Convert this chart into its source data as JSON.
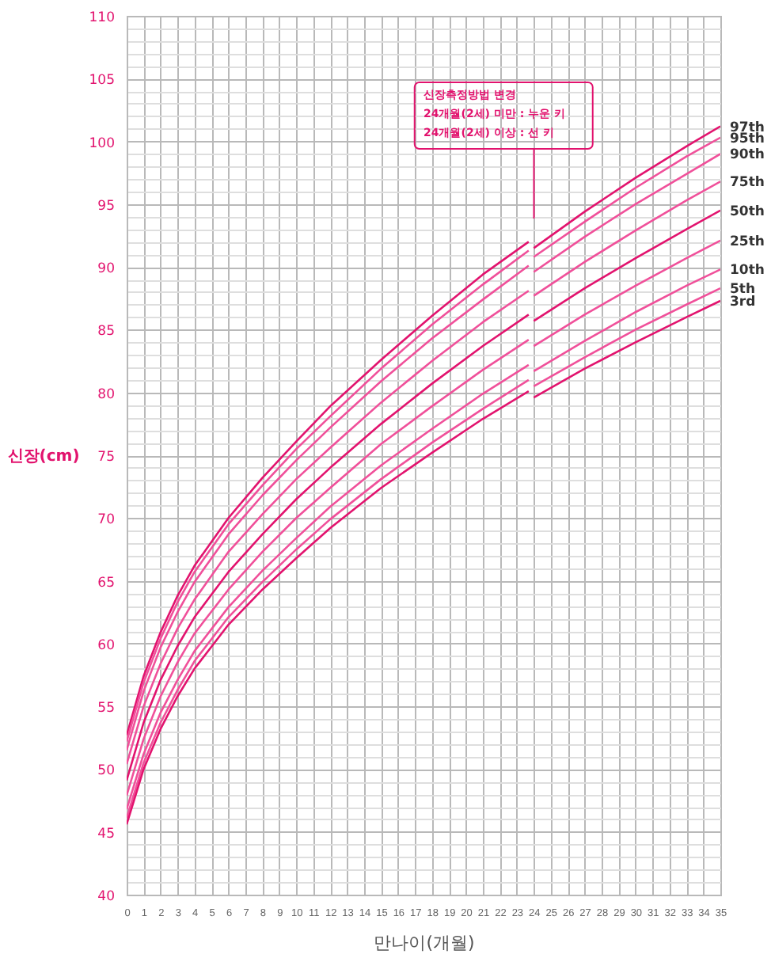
{
  "chart_data": {
    "type": "line",
    "xlabel": "만나이(개월)",
    "ylabel": "신장(cm)",
    "xlim": [
      0,
      35
    ],
    "ylim": [
      40,
      110
    ],
    "xticks": [
      0,
      1,
      2,
      3,
      4,
      5,
      6,
      7,
      8,
      9,
      10,
      11,
      12,
      13,
      14,
      15,
      16,
      17,
      18,
      19,
      20,
      21,
      22,
      23,
      24,
      25,
      26,
      27,
      28,
      29,
      30,
      31,
      32,
      33,
      34,
      35
    ],
    "yticks": [
      40,
      {
        "value": 41,
        "label": null
      },
      {
        "value": 42,
        "label": null
      },
      {
        "value": 43,
        "label": null
      },
      {
        "value": 44,
        "label": null
      },
      45,
      {
        "value": 46,
        "label": null
      },
      {
        "value": 47,
        "label": null
      },
      {
        "value": 48,
        "label": null
      },
      {
        "value": 49,
        "label": null
      },
      50,
      {
        "value": 51,
        "label": null
      },
      {
        "value": 52,
        "label": null
      },
      {
        "value": 53,
        "label": null
      },
      {
        "value": 54,
        "label": null
      },
      55,
      {
        "value": 56,
        "label": null
      },
      {
        "value": 57,
        "label": null
      },
      {
        "value": 58,
        "label": null
      },
      {
        "value": 59,
        "label": null
      },
      60,
      {
        "value": 61,
        "label": null
      },
      {
        "value": 62,
        "label": null
      },
      {
        "value": 63,
        "label": null
      },
      {
        "value": 64,
        "label": null
      },
      65,
      {
        "value": 66,
        "label": null
      },
      {
        "value": 67,
        "label": null
      },
      {
        "value": 68,
        "label": null
      },
      {
        "value": 69,
        "label": null
      },
      70,
      {
        "value": 71,
        "label": null
      },
      {
        "value": 72,
        "label": null
      },
      {
        "value": 73,
        "label": null
      },
      {
        "value": 74,
        "label": null
      },
      75,
      {
        "value": 76,
        "label": null
      },
      {
        "value": 77,
        "label": null
      },
      {
        "value": 78,
        "label": null
      },
      {
        "value": 79,
        "label": null
      },
      80,
      {
        "value": 81,
        "label": null
      },
      {
        "value": 82,
        "label": null
      },
      {
        "value": 83,
        "label": null
      },
      {
        "value": 84,
        "label": null
      },
      85,
      {
        "value": 86,
        "label": null
      },
      {
        "value": 87,
        "label": null
      },
      {
        "value": 88,
        "label": null
      },
      {
        "value": 89,
        "label": null
      },
      90,
      {
        "value": 91,
        "label": null
      },
      {
        "value": 92,
        "label": null
      },
      {
        "value": 93,
        "label": null
      },
      {
        "value": 94,
        "label": null
      },
      95,
      {
        "value": 96,
        "label": null
      },
      {
        "value": 97,
        "label": null
      },
      {
        "value": 98,
        "label": null
      },
      {
        "value": 99,
        "label": null
      },
      100,
      {
        "value": 101,
        "label": null
      },
      {
        "value": 102,
        "label": null
      },
      {
        "value": 103,
        "label": null
      },
      {
        "value": 104,
        "label": null
      },
      105,
      {
        "value": 106,
        "label": null
      },
      {
        "value": 107,
        "label": null
      },
      {
        "value": 108,
        "label": null
      },
      {
        "value": 109,
        "label": null
      },
      110
    ],
    "grid": true,
    "legend": false,
    "x": [
      0,
      1,
      2,
      3,
      4,
      6,
      8,
      10,
      12,
      15,
      18,
      21,
      23.7,
      23.85,
      24,
      27,
      30,
      33,
      35
    ],
    "series": [
      {
        "name": "97th",
        "color": "#e2136e",
        "values": [
          52.7,
          57.4,
          60.9,
          63.8,
          66.2,
          70.0,
          73.2,
          76.1,
          78.9,
          82.6,
          86.1,
          89.4,
          92.0,
          null,
          91.5,
          94.4,
          97.1,
          99.6,
          101.2
        ]
      },
      {
        "name": "95th",
        "color": "#f0509a",
        "values": [
          52.2,
          56.9,
          60.4,
          63.3,
          65.7,
          69.5,
          72.6,
          75.5,
          78.1,
          81.9,
          85.4,
          88.6,
          91.3,
          null,
          90.8,
          93.6,
          96.3,
          98.8,
          100.3
        ]
      },
      {
        "name": "90th",
        "color": "#f0509a",
        "values": [
          51.5,
          56.2,
          59.7,
          62.5,
          64.9,
          68.7,
          71.8,
          74.6,
          77.2,
          80.9,
          84.3,
          87.4,
          90.1,
          null,
          89.6,
          92.4,
          95.0,
          97.4,
          99.0
        ]
      },
      {
        "name": "75th",
        "color": "#f0509a",
        "values": [
          50.4,
          55.0,
          58.4,
          61.2,
          63.5,
          67.3,
          70.3,
          73.1,
          75.6,
          79.2,
          82.5,
          85.6,
          88.1,
          null,
          87.7,
          90.4,
          92.9,
          95.3,
          96.8
        ]
      },
      {
        "name": "50th",
        "color": "#e2136e",
        "values": [
          49.1,
          53.7,
          57.1,
          59.8,
          62.1,
          65.7,
          68.7,
          71.5,
          74.0,
          77.5,
          80.7,
          83.7,
          86.2,
          null,
          85.7,
          88.3,
          90.7,
          93.0,
          94.5
        ]
      },
      {
        "name": "25th",
        "color": "#f0509a",
        "values": [
          47.9,
          52.4,
          55.8,
          58.5,
          60.8,
          64.3,
          67.3,
          70.0,
          72.4,
          75.9,
          78.9,
          81.8,
          84.2,
          null,
          83.7,
          86.2,
          88.5,
          90.7,
          92.1
        ]
      },
      {
        "name": "10th",
        "color": "#f0509a",
        "values": [
          46.8,
          51.2,
          54.5,
          57.1,
          59.4,
          62.9,
          65.8,
          68.4,
          70.9,
          74.2,
          77.1,
          79.9,
          82.2,
          null,
          81.7,
          84.1,
          86.4,
          88.5,
          89.8
        ]
      },
      {
        "name": "5th",
        "color": "#f0509a",
        "values": [
          46.1,
          50.5,
          53.7,
          56.3,
          58.6,
          62.1,
          64.9,
          67.5,
          69.9,
          73.1,
          76.0,
          78.7,
          81.0,
          null,
          80.5,
          82.8,
          85.0,
          87.0,
          88.3
        ]
      },
      {
        "name": "3rd",
        "color": "#e2136e",
        "values": [
          45.6,
          50.0,
          53.2,
          55.8,
          58.0,
          61.5,
          64.3,
          66.8,
          69.2,
          72.4,
          75.2,
          77.9,
          80.1,
          null,
          79.6,
          81.9,
          84.0,
          86.0,
          87.3
        ]
      }
    ],
    "annotations": [
      "신장측정방법 변경\n24개월(2세) 미만 : 누운 키\n24개월(2세) 이상 : 선 키"
    ]
  }
}
